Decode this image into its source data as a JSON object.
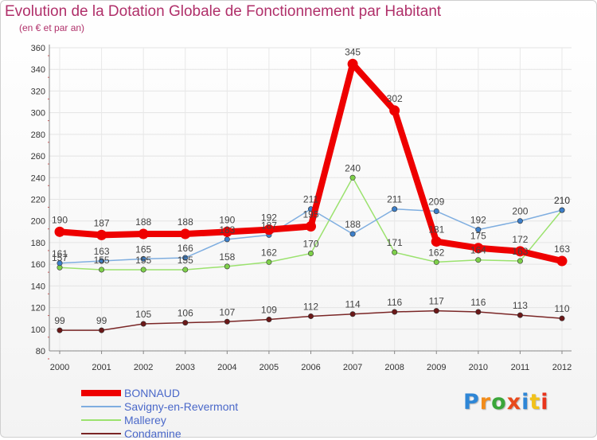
{
  "title": "Evolution de la Dotation Globale de Fonctionnement par Habitant",
  "subtitle": "(en € et par an)",
  "logo_text": "Proxiti",
  "logo_colors": [
    "#2e86d6",
    "#f28c1a",
    "#3aa63a",
    "#e84a1c",
    "#2e86d6",
    "#f2c21a",
    "#e8341c"
  ],
  "chart_data": {
    "type": "line",
    "title": "Evolution de la Dotation Globale de Fonctionnement par Habitant",
    "subtitle": "(en € et par an)",
    "xlabel": "",
    "ylabel": "",
    "x": [
      "2000",
      "2001",
      "2002",
      "2003",
      "2004",
      "2005",
      "2006",
      "2007",
      "2008",
      "2009",
      "2010",
      "2011",
      "2012"
    ],
    "ylim": [
      80,
      360
    ],
    "yticks": [
      80,
      100,
      120,
      140,
      160,
      180,
      200,
      220,
      240,
      260,
      280,
      300,
      320,
      340,
      360
    ],
    "grid": true,
    "legend_position": "bottom-left",
    "series": [
      {
        "name": "Condamine",
        "color": "#6b1818",
        "line_color": "#7a2626",
        "emphasis": "thin",
        "values": [
          99,
          99,
          105,
          106,
          107,
          109,
          112,
          114,
          116,
          117,
          116,
          113,
          110
        ]
      },
      {
        "name": "Mallerey",
        "color": "#7ed04a",
        "line_color": "#9be26e",
        "emphasis": "thin",
        "values": [
          157,
          155,
          155,
          155,
          158,
          162,
          170,
          240,
          171,
          162,
          164,
          163,
          210
        ]
      },
      {
        "name": "Savigny-en-Revermont",
        "color": "#3d7fc9",
        "line_color": "#7faee0",
        "emphasis": "thin",
        "values": [
          161,
          163,
          165,
          166,
          183,
          187,
          211,
          188,
          211,
          209,
          192,
          200,
          210
        ]
      },
      {
        "name": "BONNAUD",
        "color": "#ee0000",
        "line_color": "#ee0000",
        "emphasis": "thick",
        "values": [
          190,
          187,
          188,
          188,
          190,
          192,
          195,
          345,
          302,
          181,
          175,
          172,
          163
        ]
      }
    ],
    "legend_order": [
      "BONNAUD",
      "Savigny-en-Revermont",
      "Mallerey",
      "Condamine"
    ]
  }
}
